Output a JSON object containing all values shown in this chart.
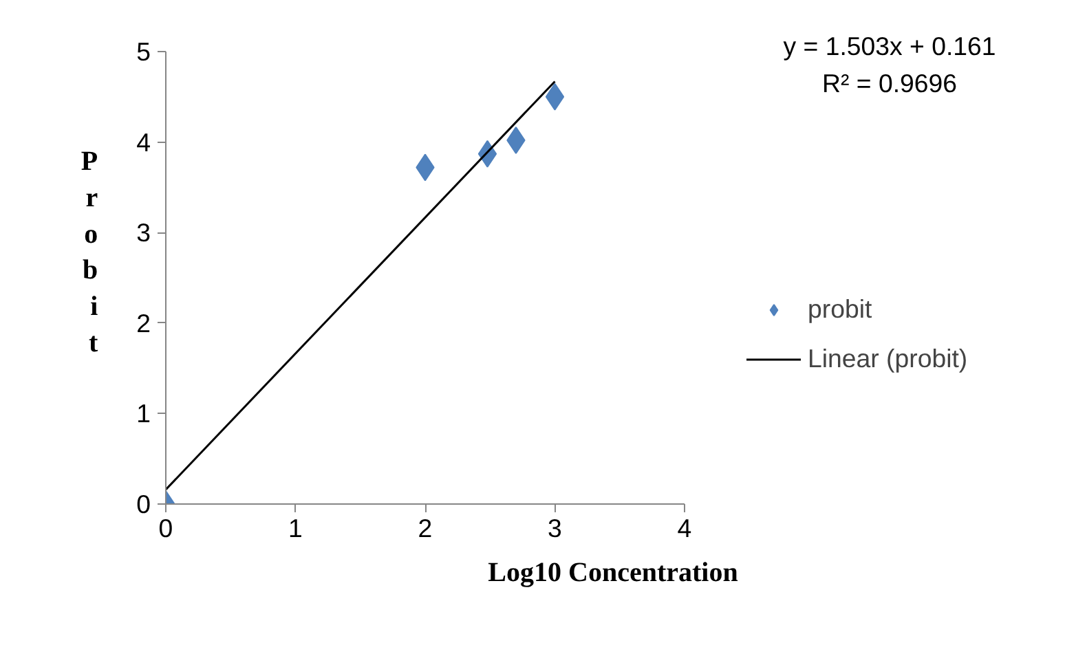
{
  "chart_data": {
    "type": "scatter",
    "xlabel": "Log10 Concentration",
    "ylabel": "Probit",
    "xlim": [
      0,
      4
    ],
    "ylim": [
      0,
      5
    ],
    "xticks": [
      0,
      1,
      2,
      3,
      4
    ],
    "yticks": [
      0,
      1,
      2,
      3,
      4,
      5
    ],
    "grid": false,
    "legend": "right",
    "series": [
      {
        "name": "probit",
        "type": "scatter",
        "marker": "diamond",
        "color": "#4f81bd",
        "x": [
          0,
          2,
          2.48,
          2.7,
          3
        ],
        "values": [
          0,
          3.72,
          3.87,
          4.02,
          4.5
        ]
      },
      {
        "name": "Linear (probit)",
        "type": "line",
        "color": "#000000",
        "line_style": "solid",
        "x": [
          0,
          3
        ],
        "values": [
          0.16,
          4.67
        ]
      }
    ],
    "annotations": [
      "y = 1.503x + 0.161",
      "R² = 0.9696"
    ]
  }
}
